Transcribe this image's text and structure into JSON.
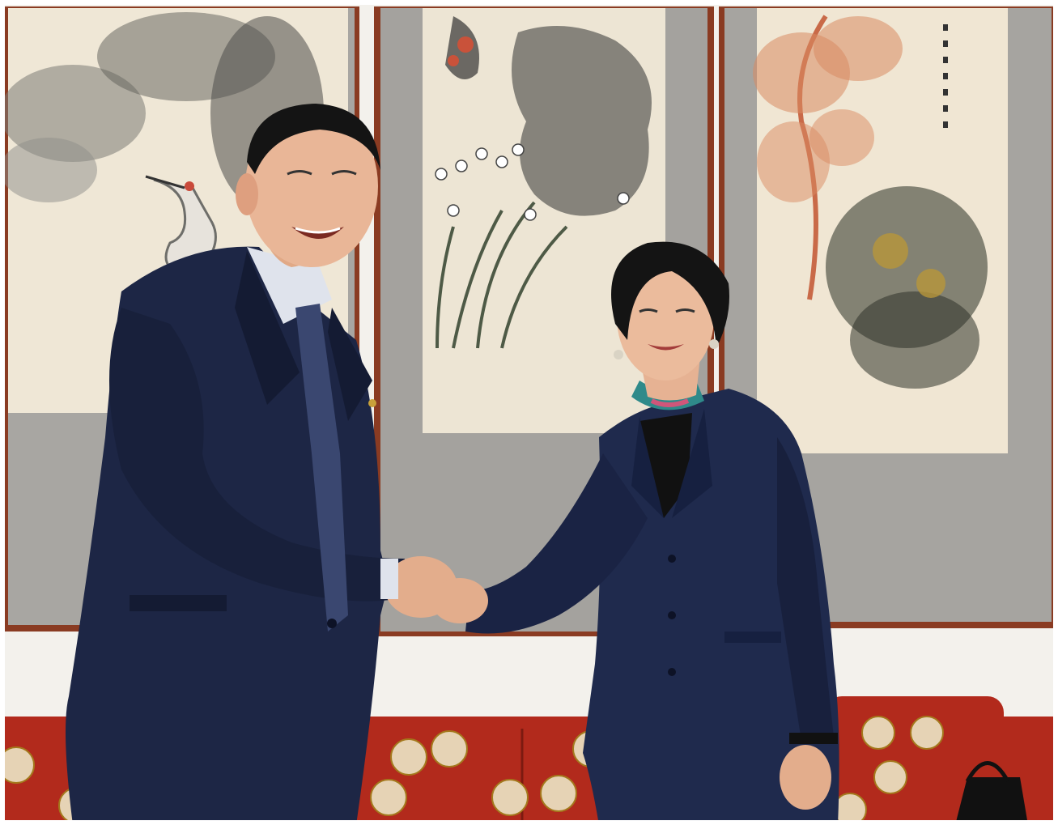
{
  "photo": {
    "description_type": "press-photo",
    "colors": {
      "wall": "#f3f1ec",
      "scroll_mount": "#9c9a96",
      "scroll_paper": "#efe7d6",
      "frame_wood": "#8a3b22",
      "suit_navy": "#1d2645",
      "suit_shadow": "#111830",
      "skin": "#e9b697",
      "hair": "#141414",
      "sofa_red": "#b22a1c",
      "sofa_medallion": "#e6d3b5",
      "tie": "#3a4770",
      "scarf_teal": "#2f8a8a",
      "scarf_pink": "#d0567a"
    },
    "subjects": [
      {
        "role": "man-in-navy-suit"
      },
      {
        "role": "woman-in-navy-suit"
      }
    ],
    "scrolls": [
      {
        "subject": "crane-and-trees"
      },
      {
        "subject": "rock-and-narcissus"
      },
      {
        "subject": "red-maple-and-chrysanthemum"
      }
    ]
  }
}
